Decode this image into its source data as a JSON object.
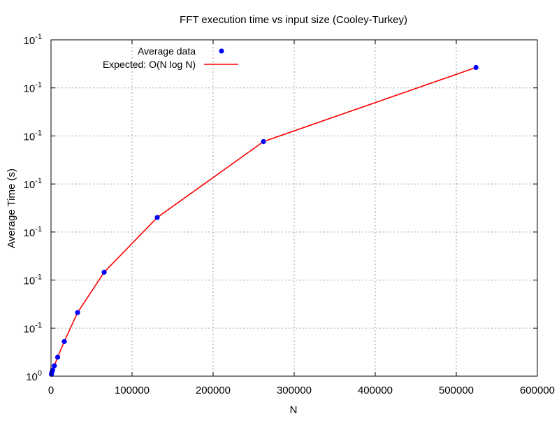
{
  "chart_data": {
    "type": "scatter",
    "title": "FFT execution time vs input size (Cooley-Turkey)",
    "xlabel": "N",
    "ylabel": "Average Time (s)",
    "xlim": [
      0,
      600000
    ],
    "x_ticks": [
      "0",
      "100000",
      "200000",
      "300000",
      "400000",
      "500000",
      "600000"
    ],
    "y_ticks": [
      {
        "base": "10",
        "exp": "0"
      },
      {
        "base": "10",
        "exp": "-1"
      },
      {
        "base": "10",
        "exp": "-1"
      },
      {
        "base": "10",
        "exp": "-1"
      },
      {
        "base": "10",
        "exp": "-1"
      },
      {
        "base": "10",
        "exp": "-1"
      },
      {
        "base": "10",
        "exp": "-1"
      },
      {
        "base": "10",
        "exp": "-1"
      }
    ],
    "y_scale": "log",
    "grid": true,
    "legend_position": "top-left",
    "series": [
      {
        "name": "Average data",
        "kind": "points",
        "color": "#0000ff",
        "x": [
          512,
          1024,
          2048,
          4096,
          8192,
          16384,
          32768,
          65536,
          131072,
          262144,
          524288
        ],
        "y": [
          0.00105,
          0.00108,
          0.00112,
          0.00119,
          0.00135,
          0.0017,
          0.0026,
          0.0047,
          0.0105,
          0.032,
          0.095
        ]
      },
      {
        "name": "Expected: O(N log N)",
        "kind": "line",
        "color": "#ff0000",
        "x": [
          512,
          1024,
          2048,
          4096,
          8192,
          16384,
          32768,
          65536,
          131072,
          262144,
          524288
        ],
        "y": [
          0.00105,
          0.00108,
          0.00112,
          0.00119,
          0.00135,
          0.0017,
          0.0026,
          0.0047,
          0.0105,
          0.032,
          0.095
        ]
      }
    ]
  }
}
